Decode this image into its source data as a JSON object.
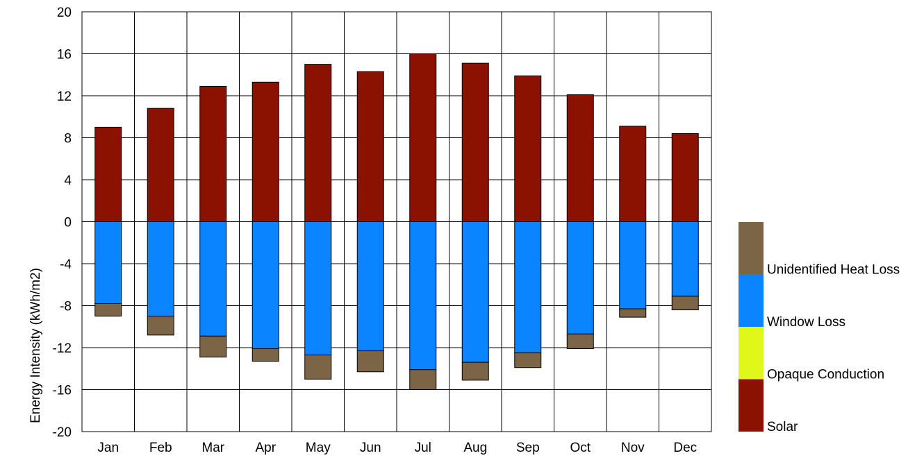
{
  "chart_data": {
    "type": "bar",
    "stacked": true,
    "title": "",
    "xlabel": "",
    "ylabel": "Energy Intensity (kWh/m2)",
    "ylim": [
      -20,
      20
    ],
    "yticks": [
      "20",
      "16",
      "12",
      "8",
      "4",
      "0",
      "-4",
      "-8",
      "-12",
      "-16",
      "-20"
    ],
    "grid": true,
    "legend_position": "right",
    "categories": [
      "Jan",
      "Feb",
      "Mar",
      "Apr",
      "May",
      "Jun",
      "Jul",
      "Aug",
      "Sep",
      "Oct",
      "Nov",
      "Dec"
    ],
    "series": [
      {
        "name": "Solar",
        "color": "#8b1200",
        "values": [
          9.0,
          10.8,
          12.9,
          13.3,
          15.0,
          14.3,
          16.0,
          15.1,
          13.9,
          12.1,
          9.1,
          8.4
        ]
      },
      {
        "name": "Opaque Conduction",
        "color": "#e0f71a",
        "values": [
          0,
          0,
          0,
          0,
          0,
          0,
          0,
          0,
          0,
          0,
          0,
          0
        ]
      },
      {
        "name": "Window Loss",
        "color": "#0a84ff",
        "values": [
          -7.8,
          -9.0,
          -10.9,
          -12.1,
          -12.7,
          -12.3,
          -14.1,
          -13.4,
          -12.5,
          -10.7,
          -8.3,
          -7.1
        ]
      },
      {
        "name": "Unidentified Heat Loss",
        "color": "#7c6546",
        "values": [
          -1.2,
          -1.8,
          -2.0,
          -1.2,
          -2.3,
          -2.0,
          -1.9,
          -1.7,
          -1.4,
          -1.4,
          -0.8,
          -1.3
        ]
      }
    ]
  }
}
